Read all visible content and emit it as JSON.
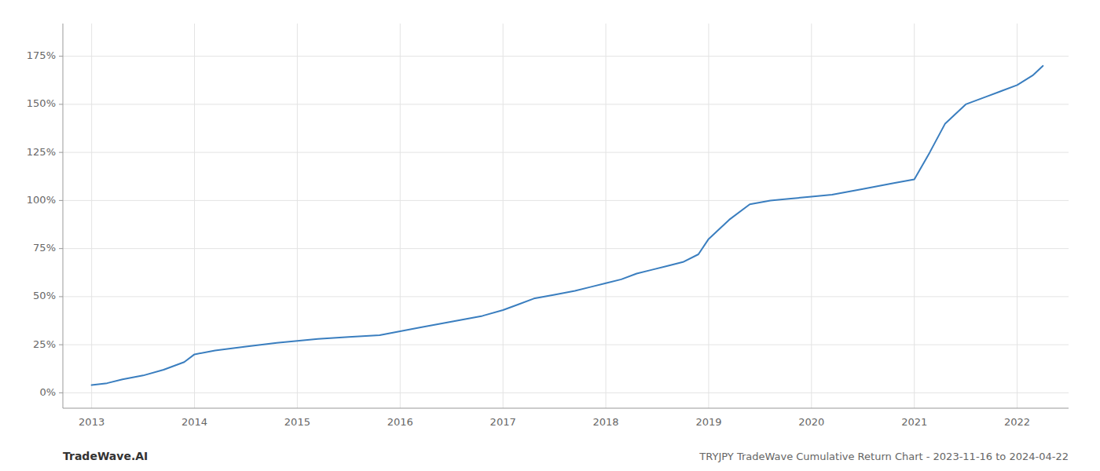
{
  "chart_data": {
    "type": "line",
    "title": "TRYJPY TradeWave Cumulative Return Chart - 2023-11-16 to 2024-04-22",
    "annotations": [
      "TradeWave.AI"
    ],
    "color": "#3a7ebf",
    "grid": true,
    "x": [
      2013.0,
      2013.15,
      2013.3,
      2013.5,
      2013.7,
      2013.9,
      2014.0,
      2014.2,
      2014.5,
      2014.8,
      2015.0,
      2015.2,
      2015.5,
      2015.8,
      2016.0,
      2016.2,
      2016.5,
      2016.8,
      2017.0,
      2017.15,
      2017.3,
      2017.5,
      2017.7,
      2017.85,
      2018.0,
      2018.15,
      2018.3,
      2018.45,
      2018.6,
      2018.75,
      2018.9,
      2019.0,
      2019.2,
      2019.4,
      2019.6,
      2019.8,
      2020.0,
      2020.2,
      2020.5,
      2020.8,
      2021.0,
      2021.15,
      2021.3,
      2021.5,
      2021.7,
      2021.85,
      2022.0,
      2022.15,
      2022.25
    ],
    "values": [
      4,
      5,
      7,
      9,
      12,
      16,
      20,
      22,
      24,
      26,
      27,
      28,
      29,
      30,
      32,
      34,
      37,
      40,
      43,
      46,
      49,
      51,
      53,
      55,
      57,
      59,
      62,
      64,
      66,
      68,
      72,
      80,
      90,
      98,
      100,
      101,
      102,
      103,
      106,
      109,
      111,
      125,
      140,
      150,
      154,
      157,
      160,
      165,
      170
    ],
    "xlim": [
      2012.72,
      2022.5
    ],
    "ylim": [
      -8,
      192
    ],
    "xticks": [
      2013,
      2014,
      2015,
      2016,
      2017,
      2018,
      2019,
      2020,
      2021,
      2022
    ],
    "yticks": [
      {
        "value": 0,
        "label": "0%"
      },
      {
        "value": 25,
        "label": "25%"
      },
      {
        "value": 50,
        "label": "50%"
      },
      {
        "value": 75,
        "label": "75%"
      },
      {
        "value": 100,
        "label": "100%"
      },
      {
        "value": 125,
        "label": "125%"
      },
      {
        "value": 150,
        "label": "150%"
      },
      {
        "value": 175,
        "label": "175%"
      }
    ]
  }
}
